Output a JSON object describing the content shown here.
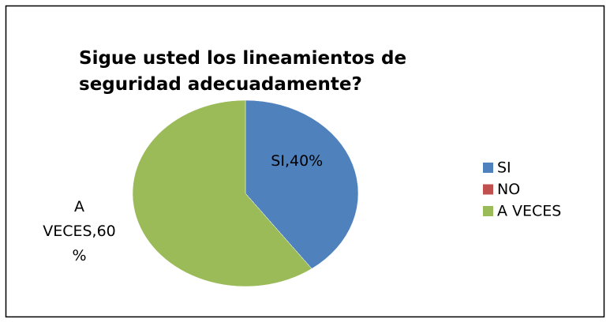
{
  "chart_data": {
    "type": "pie",
    "title": "Sigue usted los lineamientos de seguridad adecuadamente?",
    "categories": [
      "SI",
      "NO",
      "A VECES"
    ],
    "values": [
      40,
      0,
      60
    ],
    "value_labels": [
      "SI,40%",
      null,
      "A VECES,60%"
    ],
    "colors": [
      "#4f81bd",
      "#c0504d",
      "#9bbb59"
    ],
    "legend": "right"
  }
}
